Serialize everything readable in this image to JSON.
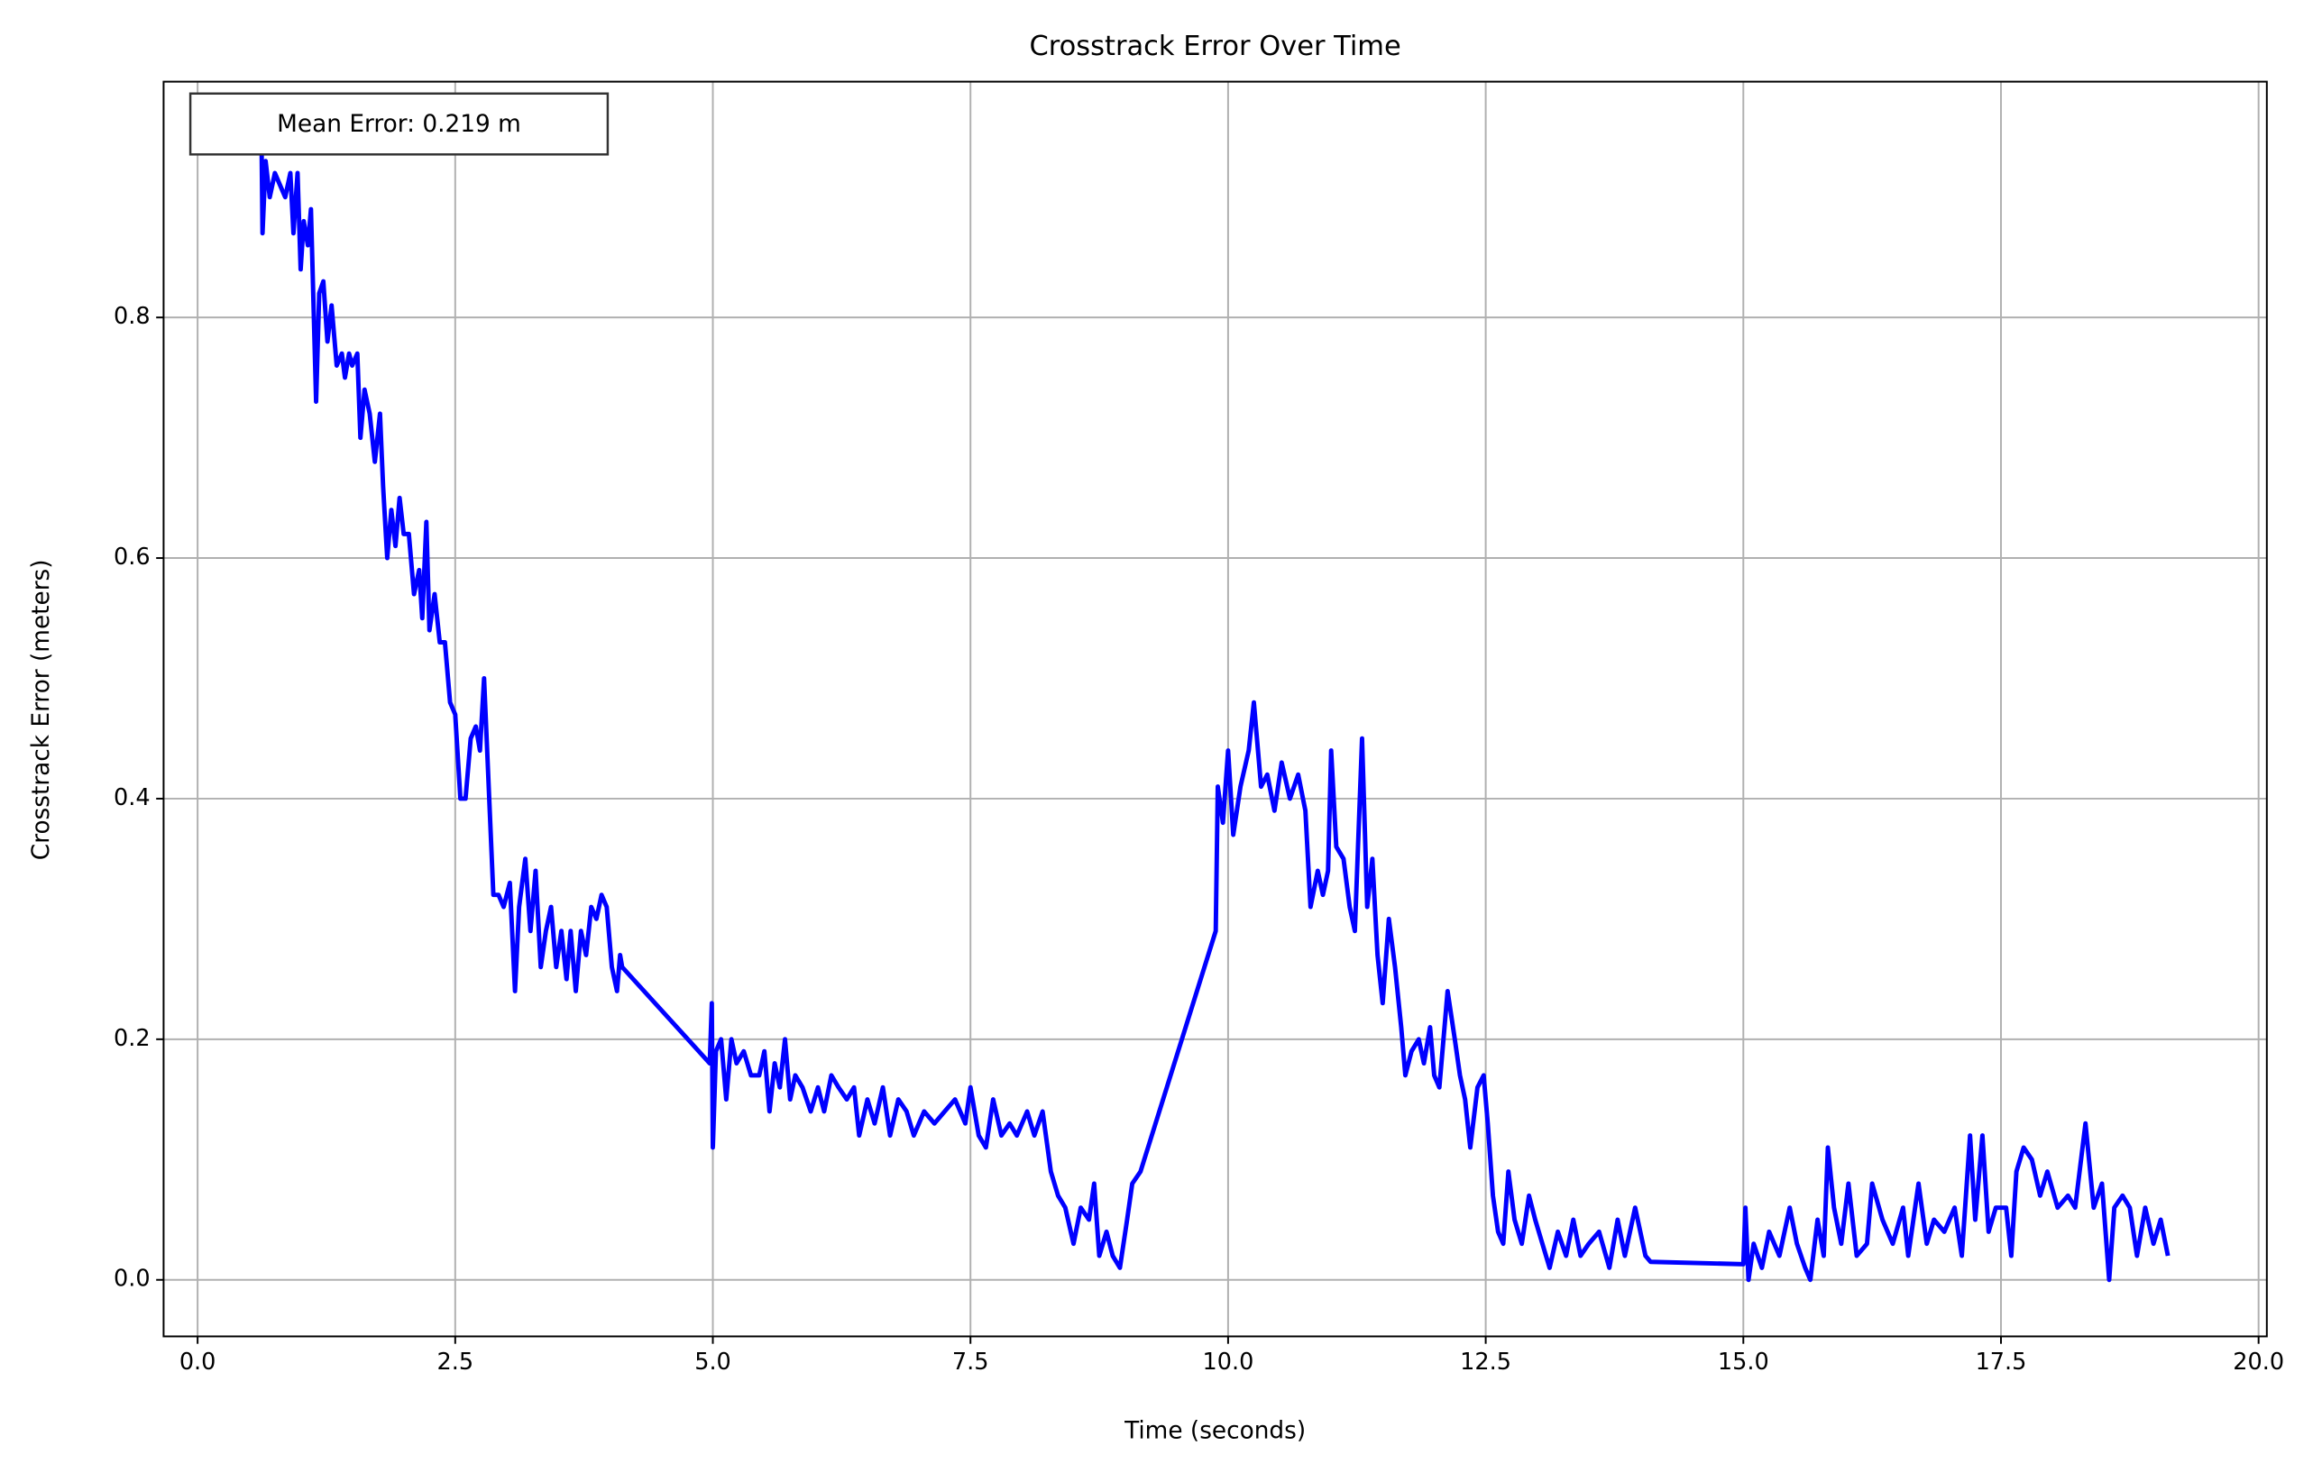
{
  "chart_data": {
    "type": "line",
    "title": "Crosstrack Error Over Time",
    "x_label": "Time (seconds)",
    "y_label": "Crosstrack Error (meters)",
    "annotation": "Mean Error: 0.219 m",
    "color": "#0000ff",
    "grid": true,
    "xlim": [
      -0.33,
      20.08
    ],
    "ylim": [
      -0.047,
      0.996
    ],
    "xticks": [
      {
        "value": 0,
        "label": "0.0"
      },
      {
        "value": 2.5,
        "label": "2.5"
      },
      {
        "value": 5,
        "label": "5.0"
      },
      {
        "value": 7.5,
        "label": "7.5"
      },
      {
        "value": 10,
        "label": "10.0"
      },
      {
        "value": 12.5,
        "label": "12.5"
      },
      {
        "value": 15,
        "label": "15.0"
      },
      {
        "value": 17.5,
        "label": "17.5"
      },
      {
        "value": 20,
        "label": "20.0"
      }
    ],
    "yticks": [
      {
        "value": 0,
        "label": "0.0"
      },
      {
        "value": 0.2,
        "label": "0.2"
      },
      {
        "value": 0.4,
        "label": "0.4"
      },
      {
        "value": 0.6,
        "label": "0.6"
      },
      {
        "value": 0.8,
        "label": "0.8"
      }
    ],
    "x": [
      0.62,
      0.63,
      0.66,
      0.7,
      0.75,
      0.8,
      0.85,
      0.9,
      0.93,
      0.97,
      1.0,
      1.03,
      1.07,
      1.1,
      1.15,
      1.18,
      1.22,
      1.26,
      1.3,
      1.35,
      1.4,
      1.43,
      1.47,
      1.5,
      1.55,
      1.58,
      1.62,
      1.67,
      1.72,
      1.77,
      1.8,
      1.84,
      1.88,
      1.92,
      1.96,
      2.0,
      2.05,
      2.1,
      2.15,
      2.18,
      2.22,
      2.25,
      2.3,
      2.35,
      2.4,
      2.45,
      2.5,
      2.55,
      2.6,
      2.65,
      2.7,
      2.74,
      2.78,
      2.83,
      2.87,
      2.92,
      2.97,
      3.03,
      3.08,
      3.12,
      3.18,
      3.23,
      3.28,
      3.33,
      3.38,
      3.43,
      3.48,
      3.53,
      3.58,
      3.62,
      3.67,
      3.72,
      3.77,
      3.82,
      3.87,
      3.92,
      3.97,
      4.02,
      4.07,
      4.1,
      4.12,
      4.97,
      4.99,
      5.0,
      5.03,
      5.08,
      5.13,
      5.18,
      5.23,
      5.3,
      5.37,
      5.45,
      5.5,
      5.55,
      5.6,
      5.65,
      5.7,
      5.75,
      5.8,
      5.87,
      5.95,
      6.02,
      6.08,
      6.15,
      6.22,
      6.3,
      6.37,
      6.42,
      6.5,
      6.57,
      6.65,
      6.72,
      6.8,
      6.88,
      6.95,
      7.05,
      7.15,
      7.25,
      7.35,
      7.45,
      7.5,
      7.58,
      7.65,
      7.72,
      7.8,
      7.88,
      7.95,
      8.05,
      8.12,
      8.2,
      8.28,
      8.35,
      8.42,
      8.5,
      8.57,
      8.65,
      8.7,
      8.75,
      8.82,
      8.88,
      8.95,
      9.02,
      9.07,
      9.15,
      9.88,
      9.9,
      9.95,
      10.0,
      10.05,
      10.12,
      10.2,
      10.25,
      10.32,
      10.38,
      10.45,
      10.52,
      10.6,
      10.68,
      10.75,
      10.8,
      10.87,
      10.92,
      10.97,
      11.0,
      11.05,
      11.12,
      11.18,
      11.23,
      11.3,
      11.35,
      11.4,
      11.45,
      11.5,
      11.56,
      11.62,
      11.68,
      11.72,
      11.78,
      11.85,
      11.9,
      11.96,
      12.0,
      12.05,
      12.13,
      12.2,
      12.25,
      12.3,
      12.35,
      12.42,
      12.48,
      12.52,
      12.57,
      12.62,
      12.67,
      12.72,
      12.78,
      12.85,
      12.92,
      12.98,
      13.05,
      13.12,
      13.2,
      13.28,
      13.35,
      13.42,
      13.5,
      13.6,
      13.7,
      13.78,
      13.85,
      13.95,
      14.05,
      14.1,
      15.0,
      15.02,
      15.05,
      15.1,
      15.18,
      15.25,
      15.35,
      15.45,
      15.52,
      15.6,
      15.65,
      15.72,
      15.78,
      15.82,
      15.88,
      15.95,
      16.02,
      16.1,
      16.2,
      16.25,
      16.35,
      16.45,
      16.55,
      16.6,
      16.7,
      16.78,
      16.85,
      16.95,
      17.05,
      17.12,
      17.2,
      17.25,
      17.32,
      17.38,
      17.45,
      17.55,
      17.6,
      17.65,
      17.72,
      17.8,
      17.88,
      17.95,
      18.05,
      18.15,
      18.22,
      18.32,
      18.4,
      18.48,
      18.55,
      18.6,
      18.68,
      18.75,
      18.82,
      18.9,
      18.98,
      19.05,
      19.12
    ],
    "values": [
      0.95,
      0.87,
      0.93,
      0.9,
      0.92,
      0.91,
      0.9,
      0.92,
      0.87,
      0.92,
      0.84,
      0.88,
      0.86,
      0.89,
      0.73,
      0.82,
      0.83,
      0.78,
      0.81,
      0.76,
      0.77,
      0.75,
      0.77,
      0.76,
      0.77,
      0.7,
      0.74,
      0.72,
      0.68,
      0.72,
      0.66,
      0.6,
      0.64,
      0.61,
      0.65,
      0.62,
      0.62,
      0.57,
      0.59,
      0.55,
      0.63,
      0.54,
      0.57,
      0.53,
      0.53,
      0.48,
      0.47,
      0.4,
      0.4,
      0.45,
      0.46,
      0.44,
      0.5,
      0.4,
      0.32,
      0.32,
      0.31,
      0.33,
      0.24,
      0.31,
      0.35,
      0.29,
      0.34,
      0.26,
      0.29,
      0.31,
      0.26,
      0.29,
      0.25,
      0.29,
      0.24,
      0.29,
      0.27,
      0.31,
      0.3,
      0.32,
      0.31,
      0.26,
      0.24,
      0.27,
      0.26,
      0.18,
      0.23,
      0.11,
      0.19,
      0.2,
      0.15,
      0.2,
      0.18,
      0.19,
      0.17,
      0.17,
      0.19,
      0.14,
      0.18,
      0.16,
      0.2,
      0.15,
      0.17,
      0.16,
      0.14,
      0.16,
      0.14,
      0.17,
      0.16,
      0.15,
      0.16,
      0.12,
      0.15,
      0.13,
      0.16,
      0.12,
      0.15,
      0.14,
      0.12,
      0.14,
      0.13,
      0.14,
      0.15,
      0.13,
      0.16,
      0.12,
      0.11,
      0.15,
      0.12,
      0.13,
      0.12,
      0.14,
      0.12,
      0.14,
      0.09,
      0.07,
      0.06,
      0.03,
      0.06,
      0.05,
      0.08,
      0.02,
      0.04,
      0.02,
      0.01,
      0.05,
      0.08,
      0.09,
      0.29,
      0.41,
      0.38,
      0.44,
      0.37,
      0.41,
      0.44,
      0.48,
      0.41,
      0.42,
      0.39,
      0.43,
      0.4,
      0.42,
      0.39,
      0.31,
      0.34,
      0.32,
      0.34,
      0.44,
      0.36,
      0.35,
      0.31,
      0.29,
      0.45,
      0.31,
      0.35,
      0.27,
      0.23,
      0.3,
      0.26,
      0.21,
      0.17,
      0.19,
      0.2,
      0.18,
      0.21,
      0.17,
      0.16,
      0.24,
      0.2,
      0.17,
      0.15,
      0.11,
      0.16,
      0.17,
      0.13,
      0.07,
      0.04,
      0.03,
      0.09,
      0.05,
      0.03,
      0.07,
      0.05,
      0.03,
      0.01,
      0.04,
      0.02,
      0.05,
      0.02,
      0.03,
      0.04,
      0.01,
      0.05,
      0.02,
      0.06,
      0.02,
      0.015,
      0.013,
      0.06,
      0.0,
      0.03,
      0.01,
      0.04,
      0.02,
      0.06,
      0.03,
      0.01,
      0.0,
      0.05,
      0.02,
      0.11,
      0.06,
      0.03,
      0.08,
      0.02,
      0.03,
      0.08,
      0.05,
      0.03,
      0.06,
      0.02,
      0.08,
      0.03,
      0.05,
      0.04,
      0.06,
      0.02,
      0.12,
      0.05,
      0.12,
      0.04,
      0.06,
      0.06,
      0.02,
      0.09,
      0.11,
      0.1,
      0.07,
      0.09,
      0.06,
      0.07,
      0.06,
      0.13,
      0.06,
      0.08,
      0.0,
      0.06,
      0.07,
      0.06,
      0.02,
      0.06,
      0.03,
      0.05,
      0.02
    ]
  }
}
